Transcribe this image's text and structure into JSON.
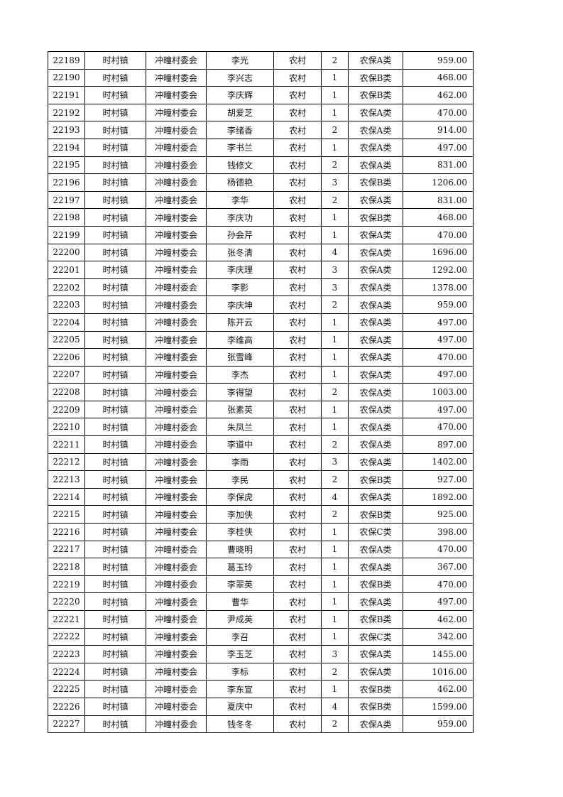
{
  "rows": [
    [
      "22189",
      "时村镇",
      "冲疃村委会",
      "李光",
      "农村",
      "2",
      "农保A类",
      "959.00"
    ],
    [
      "22190",
      "时村镇",
      "冲疃村委会",
      "李兴志",
      "农村",
      "1",
      "农保B类",
      "468.00"
    ],
    [
      "22191",
      "时村镇",
      "冲疃村委会",
      "李庆辉",
      "农村",
      "1",
      "农保B类",
      "462.00"
    ],
    [
      "22192",
      "时村镇",
      "冲疃村委会",
      "胡爱芝",
      "农村",
      "1",
      "农保A类",
      "470.00"
    ],
    [
      "22193",
      "时村镇",
      "冲疃村委会",
      "李绪香",
      "农村",
      "2",
      "农保A类",
      "914.00"
    ],
    [
      "22194",
      "时村镇",
      "冲疃村委会",
      "李书兰",
      "农村",
      "1",
      "农保A类",
      "497.00"
    ],
    [
      "22195",
      "时村镇",
      "冲疃村委会",
      "钱修文",
      "农村",
      "2",
      "农保A类",
      "831.00"
    ],
    [
      "22196",
      "时村镇",
      "冲疃村委会",
      "杨德艳",
      "农村",
      "3",
      "农保B类",
      "1206.00"
    ],
    [
      "22197",
      "时村镇",
      "冲疃村委会",
      "李华",
      "农村",
      "2",
      "农保A类",
      "831.00"
    ],
    [
      "22198",
      "时村镇",
      "冲疃村委会",
      "李庆功",
      "农村",
      "1",
      "农保B类",
      "468.00"
    ],
    [
      "22199",
      "时村镇",
      "冲疃村委会",
      "孙会芹",
      "农村",
      "1",
      "农保A类",
      "470.00"
    ],
    [
      "22200",
      "时村镇",
      "冲疃村委会",
      "张冬清",
      "农村",
      "4",
      "农保A类",
      "1696.00"
    ],
    [
      "22201",
      "时村镇",
      "冲疃村委会",
      "李庆理",
      "农村",
      "3",
      "农保A类",
      "1292.00"
    ],
    [
      "22202",
      "时村镇",
      "冲疃村委会",
      "李影",
      "农村",
      "3",
      "农保A类",
      "1378.00"
    ],
    [
      "22203",
      "时村镇",
      "冲疃村委会",
      "李庆坤",
      "农村",
      "2",
      "农保A类",
      "959.00"
    ],
    [
      "22204",
      "时村镇",
      "冲疃村委会",
      "陈开云",
      "农村",
      "1",
      "农保A类",
      "497.00"
    ],
    [
      "22205",
      "时村镇",
      "冲疃村委会",
      "李维高",
      "农村",
      "1",
      "农保A类",
      "497.00"
    ],
    [
      "22206",
      "时村镇",
      "冲疃村委会",
      "张雪峰",
      "农村",
      "1",
      "农保A类",
      "470.00"
    ],
    [
      "22207",
      "时村镇",
      "冲疃村委会",
      "李杰",
      "农村",
      "1",
      "农保A类",
      "497.00"
    ],
    [
      "22208",
      "时村镇",
      "冲疃村委会",
      "李得望",
      "农村",
      "2",
      "农保A类",
      "1003.00"
    ],
    [
      "22209",
      "时村镇",
      "冲疃村委会",
      "张素英",
      "农村",
      "1",
      "农保A类",
      "497.00"
    ],
    [
      "22210",
      "时村镇",
      "冲疃村委会",
      "朱凤兰",
      "农村",
      "1",
      "农保A类",
      "470.00"
    ],
    [
      "22211",
      "时村镇",
      "冲疃村委会",
      "李道中",
      "农村",
      "2",
      "农保A类",
      "897.00"
    ],
    [
      "22212",
      "时村镇",
      "冲疃村委会",
      "李雨",
      "农村",
      "3",
      "农保A类",
      "1402.00"
    ],
    [
      "22213",
      "时村镇",
      "冲疃村委会",
      "李民",
      "农村",
      "2",
      "农保B类",
      "927.00"
    ],
    [
      "22214",
      "时村镇",
      "冲疃村委会",
      "李保虎",
      "农村",
      "4",
      "农保A类",
      "1892.00"
    ],
    [
      "22215",
      "时村镇",
      "冲疃村委会",
      "李加侠",
      "农村",
      "2",
      "农保B类",
      "925.00"
    ],
    [
      "22216",
      "时村镇",
      "冲疃村委会",
      "李桂侠",
      "农村",
      "1",
      "农保C类",
      "398.00"
    ],
    [
      "22217",
      "时村镇",
      "冲疃村委会",
      "曹晓明",
      "农村",
      "1",
      "农保A类",
      "470.00"
    ],
    [
      "22218",
      "时村镇",
      "冲疃村委会",
      "葛玉玲",
      "农村",
      "1",
      "农保A类",
      "367.00"
    ],
    [
      "22219",
      "时村镇",
      "冲疃村委会",
      "李翠英",
      "农村",
      "1",
      "农保B类",
      "470.00"
    ],
    [
      "22220",
      "时村镇",
      "冲疃村委会",
      "曹华",
      "农村",
      "1",
      "农保A类",
      "497.00"
    ],
    [
      "22221",
      "时村镇",
      "冲疃村委会",
      "尹成英",
      "农村",
      "1",
      "农保B类",
      "462.00"
    ],
    [
      "22222",
      "时村镇",
      "冲疃村委会",
      "李召",
      "农村",
      "1",
      "农保C类",
      "342.00"
    ],
    [
      "22223",
      "时村镇",
      "冲疃村委会",
      "李玉芝",
      "农村",
      "3",
      "农保A类",
      "1455.00"
    ],
    [
      "22224",
      "时村镇",
      "冲疃村委会",
      "李标",
      "农村",
      "2",
      "农保A类",
      "1016.00"
    ],
    [
      "22225",
      "时村镇",
      "冲疃村委会",
      "李东宣",
      "农村",
      "1",
      "农保B类",
      "462.00"
    ],
    [
      "22226",
      "时村镇",
      "冲疃村委会",
      "夏庆中",
      "农村",
      "4",
      "农保B类",
      "1599.00"
    ],
    [
      "22227",
      "时村镇",
      "冲疃村委会",
      "钱冬冬",
      "农村",
      "2",
      "农保A类",
      "959.00"
    ]
  ]
}
